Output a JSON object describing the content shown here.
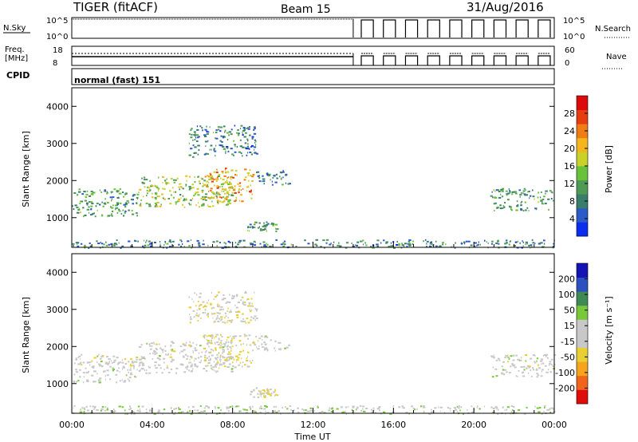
{
  "header": {
    "title": "TIGER (fitACF)",
    "beam": "Beam 15",
    "date": "31/Aug/2016"
  },
  "strips": {
    "nsky_label": "N.Sky",
    "nsearch_label": "N.Search",
    "freq_label": "Freq.",
    "freq_unit": "[MHz]",
    "nave_label": "Nave",
    "cpid_label": "CPID",
    "cpid_text": "normal (fast) 151",
    "noise_ticks": [
      "10^5",
      "10^0"
    ],
    "freq_ticks": [
      "18",
      "8"
    ],
    "nave_ticks": [
      "60",
      "0"
    ],
    "change_time_hours": 14.0,
    "sounding_windows": [
      14.4,
      15.5,
      16.6,
      17.7,
      18.8,
      19.9,
      21.0,
      22.1,
      23.2
    ]
  },
  "colors": {
    "power_bar": [
      "#0a2df0",
      "#2c5ac8",
      "#3a7d6a",
      "#4f9a55",
      "#68c23a",
      "#c8d228",
      "#f4b61c",
      "#f07c14",
      "#e63c10",
      "#dc0a0a"
    ],
    "velocity_bar": [
      "#e00c0c",
      "#f0641c",
      "#f5a41c",
      "#e8d032",
      "#c8c8c8",
      "#c8c8c8",
      "#78c838",
      "#3d8a55",
      "#2c50c0",
      "#1414b4"
    ]
  },
  "chart_data": [
    {
      "type": "heatmap",
      "name": "power",
      "ylabel": "Slant Range [km]",
      "yticks": [
        "1000",
        "2000",
        "3000",
        "4000"
      ],
      "ylim": [
        200,
        4500
      ],
      "xlim": [
        0,
        24
      ],
      "colorbar": {
        "label": "Power [dB]",
        "ticks": [
          "4",
          "8",
          "12",
          "16",
          "20",
          "24",
          "28"
        ],
        "range": [
          0,
          30
        ]
      },
      "echo_regions": [
        {
          "t0": 0.0,
          "t1": 3.3,
          "r0": 1050,
          "r1": 1800,
          "value": 10
        },
        {
          "t0": 3.3,
          "t1": 8.0,
          "r0": 1300,
          "r1": 2150,
          "value": 14
        },
        {
          "t0": 6.5,
          "t1": 9.0,
          "r0": 1450,
          "r1": 2350,
          "value": 20
        },
        {
          "t0": 9.0,
          "t1": 10.8,
          "r0": 1900,
          "r1": 2300,
          "value": 8
        },
        {
          "t0": 5.8,
          "t1": 9.2,
          "r0": 2650,
          "r1": 3500,
          "value": 7
        },
        {
          "t0": 8.7,
          "t1": 10.2,
          "r0": 650,
          "r1": 900,
          "value": 10
        },
        {
          "t0": 20.8,
          "t1": 24.0,
          "r0": 1200,
          "r1": 1800,
          "value": 10
        },
        {
          "t0": 0.0,
          "t1": 24.0,
          "r0": 200,
          "r1": 420,
          "value": 8
        }
      ]
    },
    {
      "type": "heatmap",
      "name": "velocity",
      "ylabel": "Slant Range [km]",
      "yticks": [
        "1000",
        "2000",
        "3000",
        "4000"
      ],
      "ylim": [
        200,
        4500
      ],
      "xlim": [
        0,
        24
      ],
      "xlabel": "Time UT",
      "xticks": [
        "00:00",
        "04:00",
        "08:00",
        "12:00",
        "16:00",
        "20:00",
        "00:00"
      ],
      "colorbar": {
        "label": "Velocity [m s⁻¹]",
        "ticks": [
          "-200",
          "-100",
          "-50",
          "-15",
          "15",
          "50",
          "100",
          "200"
        ],
        "range": [
          -250,
          250
        ]
      },
      "echo_regions": [
        {
          "t0": 0.0,
          "t1": 3.3,
          "r0": 1050,
          "r1": 1800,
          "value": 0
        },
        {
          "t0": 3.3,
          "t1": 8.0,
          "r0": 1300,
          "r1": 2150,
          "value": 0
        },
        {
          "t0": 6.5,
          "t1": 9.0,
          "r0": 1450,
          "r1": 2350,
          "value": -40
        },
        {
          "t0": 9.0,
          "t1": 10.8,
          "r0": 1900,
          "r1": 2300,
          "value": 0
        },
        {
          "t0": 5.8,
          "t1": 9.2,
          "r0": 2650,
          "r1": 3500,
          "value": -30
        },
        {
          "t0": 8.7,
          "t1": 10.2,
          "r0": 650,
          "r1": 900,
          "value": -40
        },
        {
          "t0": 20.8,
          "t1": 24.0,
          "r0": 1200,
          "r1": 1800,
          "value": 0
        },
        {
          "t0": 0.0,
          "t1": 24.0,
          "r0": 200,
          "r1": 420,
          "value": 30
        }
      ]
    }
  ]
}
